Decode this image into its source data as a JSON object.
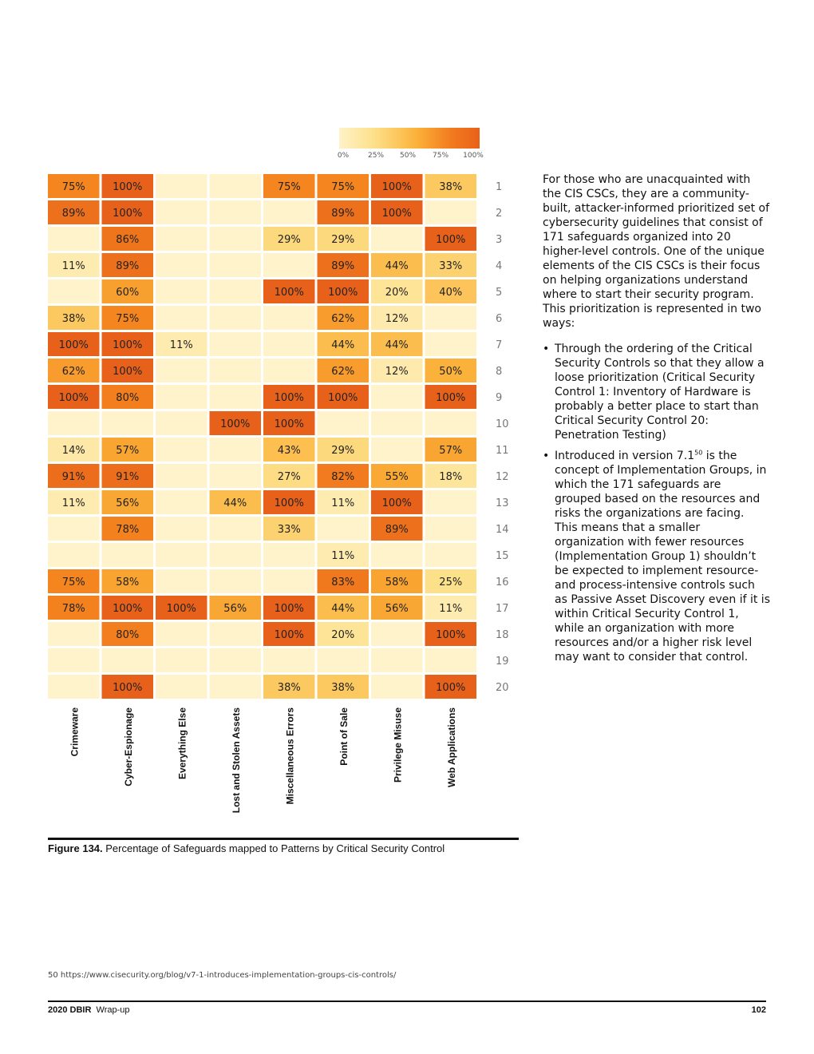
{
  "chart_data": {
    "type": "heatmap",
    "title": "",
    "columns": [
      "Crimeware",
      "Cyber-Espionage",
      "Everything Else",
      "Lost and Stolen Assets",
      "Miscellaneous Errors",
      "Point of Sale",
      "Privilege Misuse",
      "Web Applications"
    ],
    "rows": [
      "1",
      "2",
      "3",
      "4",
      "5",
      "6",
      "7",
      "8",
      "9",
      "10",
      "11",
      "12",
      "13",
      "14",
      "15",
      "16",
      "17",
      "18",
      "19",
      "20"
    ],
    "values": [
      [
        75,
        100,
        null,
        null,
        75,
        75,
        100,
        38
      ],
      [
        89,
        100,
        null,
        null,
        null,
        89,
        100,
        null
      ],
      [
        null,
        86,
        null,
        null,
        29,
        29,
        null,
        100
      ],
      [
        11,
        89,
        null,
        null,
        null,
        89,
        44,
        33
      ],
      [
        null,
        60,
        null,
        null,
        100,
        100,
        20,
        40
      ],
      [
        38,
        75,
        null,
        null,
        null,
        62,
        12,
        null
      ],
      [
        100,
        100,
        11,
        null,
        null,
        44,
        44,
        null
      ],
      [
        62,
        100,
        null,
        null,
        null,
        62,
        12,
        50
      ],
      [
        100,
        80,
        null,
        null,
        100,
        100,
        null,
        100
      ],
      [
        null,
        null,
        null,
        100,
        100,
        null,
        null,
        null
      ],
      [
        14,
        57,
        null,
        null,
        43,
        29,
        null,
        57
      ],
      [
        91,
        91,
        null,
        null,
        27,
        82,
        55,
        18
      ],
      [
        11,
        56,
        null,
        44,
        100,
        11,
        100,
        null
      ],
      [
        null,
        78,
        null,
        null,
        33,
        null,
        89,
        null
      ],
      [
        null,
        null,
        null,
        null,
        null,
        11,
        null,
        null
      ],
      [
        75,
        58,
        null,
        null,
        null,
        83,
        58,
        25
      ],
      [
        78,
        100,
        100,
        56,
        100,
        44,
        56,
        11
      ],
      [
        null,
        80,
        null,
        null,
        100,
        20,
        null,
        100
      ],
      [
        null,
        null,
        null,
        null,
        null,
        null,
        null,
        null
      ],
      [
        null,
        100,
        null,
        null,
        38,
        38,
        null,
        100
      ]
    ],
    "value_suffix": "%",
    "color_scale": {
      "min": 0,
      "max": 100,
      "colors": [
        "#fff3cc",
        "#fde08a",
        "#fbb23a",
        "#f4851f",
        "#e8611a"
      ]
    },
    "legend": {
      "ticks": [
        "0%",
        "25%",
        "50%",
        "75%",
        "100%"
      ],
      "placement": "top"
    }
  },
  "caption": {
    "label": "Figure 134.",
    "text": "Percentage of Safeguards mapped to Patterns by Critical Security Control"
  },
  "sidebar": {
    "intro": "For those who are unacquainted with the CIS CSCs, they are a community-built, attacker-informed prioritized set of cybersecurity guidelines that consist of 171 safeguards organized into 20 higher-level controls. One of the unique elements of the CIS CSCs is their focus on helping organizations understand where to start their security program. This prioritization is represented in two ways:",
    "bullet_glyph": "•",
    "bullet1": "Through the ordering of the Critical Security Controls so that they allow a loose prioritization (Critical Security Control 1: Inventory of Hardware is probably a better place to start than Critical Security Control 20: Penetration Testing)",
    "bullet2_before": "Introduced in version 7.1",
    "bullet2_sup": "50",
    "bullet2_after": " is the concept of Implementation Groups, in which the 171 safeguards are grouped based on the resources and risks the organizations are facing. This means that a smaller organization with fewer resources (Implementation Group 1) shouldn’t be expected to implement resource- and process-intensive controls such as Passive Asset Discovery even if it is within Critical Security Control 1, while an organization with more resources and/or a higher risk level may want to consider that control."
  },
  "footnote": "50  https://www.cisecurity.org/blog/v7-1-introduces-implementation-groups-cis-controls/",
  "footer": {
    "report": "2020 DBIR",
    "section": "Wrap-up",
    "page": "102"
  }
}
